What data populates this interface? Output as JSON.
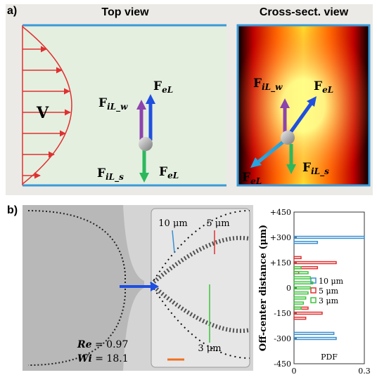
{
  "panel_a": {
    "label": "a)",
    "top_view": "Top view",
    "cross_view": "Cross-sect. view",
    "velocity": "V",
    "top_forces": [
      {
        "main": "F",
        "sub": "iL_w"
      },
      {
        "main": "F",
        "sub": "eL"
      },
      {
        "main": "F",
        "sub": "iL_s"
      },
      {
        "main": "F",
        "sub": "eL"
      }
    ],
    "cross_forces": [
      {
        "main": "F",
        "sub": "iL_w"
      },
      {
        "main": "F",
        "sub": "eL"
      },
      {
        "main": "F",
        "sub": "eL"
      },
      {
        "main": "F",
        "sub": "iL_s"
      }
    ]
  },
  "panel_b": {
    "label": "b)",
    "size_labels": [
      "10 μm",
      "5 μm",
      "3 μm"
    ],
    "re_symbol": "Re",
    "re_eq": "= 0.97",
    "wi_symbol": "Wi",
    "wi_eq": "= 18.1"
  },
  "chart_data": {
    "type": "histogram",
    "orientation": "horizontal",
    "ylabel": "Off-center distance (μm)",
    "xlabel": "PDF",
    "bins": [
      -315,
      -285,
      -255,
      -225,
      -195,
      -165,
      -135,
      -105,
      -75,
      -45,
      -15,
      15,
      45,
      75,
      105,
      135,
      165,
      195,
      225,
      255,
      285,
      315
    ],
    "series": [
      {
        "name": "10 μm",
        "color": "#3a8fd0",
        "values": [
          0.18,
          0.17,
          0,
          0,
          0,
          0,
          0,
          0,
          0,
          0,
          0,
          0,
          0,
          0,
          0,
          0,
          0,
          0,
          0,
          0.1,
          0.3
        ]
      },
      {
        "name": "5 μm",
        "color": "#e03030",
        "values": [
          0,
          0,
          0,
          0,
          0.05,
          0.12,
          0.06,
          0,
          0,
          0,
          0,
          0,
          0,
          0.02,
          0.1,
          0.18,
          0.03,
          0,
          0,
          0,
          0
        ]
      },
      {
        "name": "3 μm",
        "color": "#3cc43c",
        "values": [
          0,
          0,
          0,
          0,
          0,
          0,
          0.03,
          0.04,
          0.05,
          0.06,
          0.07,
          0.08,
          0.07,
          0.06,
          0.03,
          0,
          0,
          0,
          0,
          0,
          0
        ]
      }
    ],
    "xlim": [
      0,
      0.3
    ],
    "ylim": [
      -450,
      450
    ],
    "xticks": [
      0,
      0.3
    ],
    "yticks": [
      {
        "value": 450,
        "label": "+450"
      },
      {
        "value": 300,
        "label": "+300"
      },
      {
        "value": 150,
        "label": "+150"
      },
      0,
      -150,
      -300,
      -450
    ],
    "legend": "center-right"
  }
}
